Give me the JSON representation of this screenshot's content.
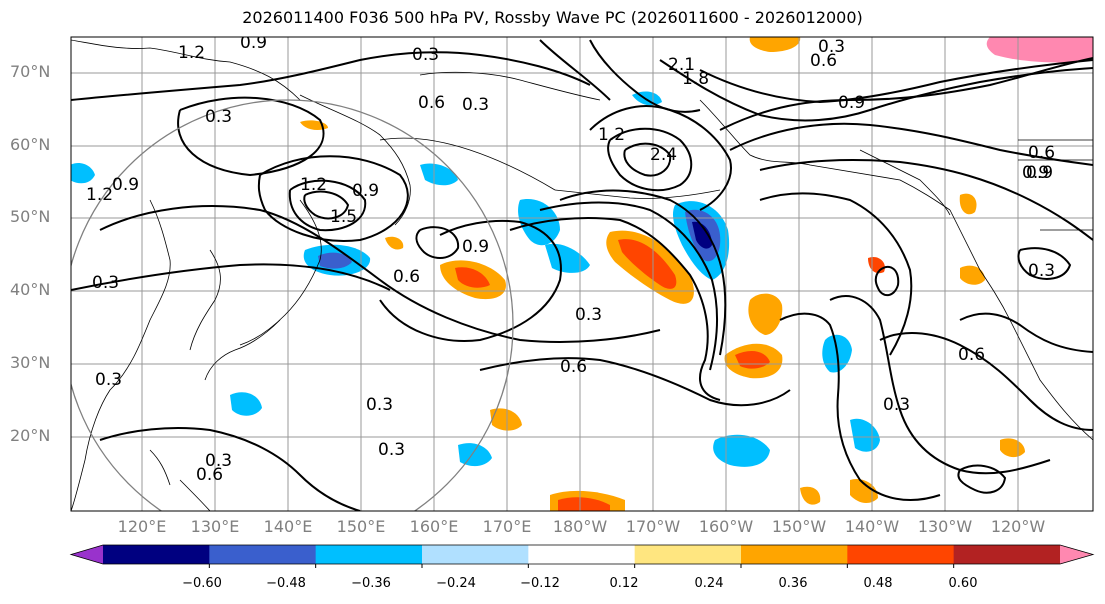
{
  "title": "2026011400 F036 500 hPa PV, Rossby Wave PC (2026011600 - 2026012000)",
  "lat_labels": [
    "70°N",
    "60°N",
    "50°N",
    "40°N",
    "30°N",
    "20°N"
  ],
  "lon_labels": [
    "120°E",
    "130°E",
    "140°E",
    "150°E",
    "160°E",
    "170°E",
    "180°W",
    "170°W",
    "160°W",
    "150°W",
    "140°W",
    "130°W",
    "120°W"
  ],
  "colorbar": {
    "ticks": [
      "−0.60",
      "−0.48",
      "−0.36",
      "−0.24",
      "−0.12",
      "0.12",
      "0.24",
      "0.36",
      "0.48",
      "0.60"
    ],
    "colors": [
      "#9932cc",
      "#000080",
      "#3a5fcd",
      "#00bfff",
      "#b0e0ff",
      "#ffffff",
      "#ffe680",
      "#ffa500",
      "#ff4500",
      "#b22222",
      "#ff88b0"
    ]
  },
  "contour_labels": [
    "1.2",
    "0.9",
    "0.3",
    "0.6",
    "0.3",
    "2.1",
    "1.8",
    "0.9",
    "0.6",
    "0.3",
    "0.6",
    "0.9",
    "0.9",
    "1.2",
    "1.2",
    "0.9",
    "1.5",
    "0.3",
    "0.6",
    "0.9",
    "0.3",
    "0.9",
    "0.3",
    "0.6",
    "0.3",
    "0.3",
    "0.3",
    "0.6",
    "0.3",
    "0.3",
    "0.6",
    "0.3",
    "1.2",
    "2.4"
  ]
}
